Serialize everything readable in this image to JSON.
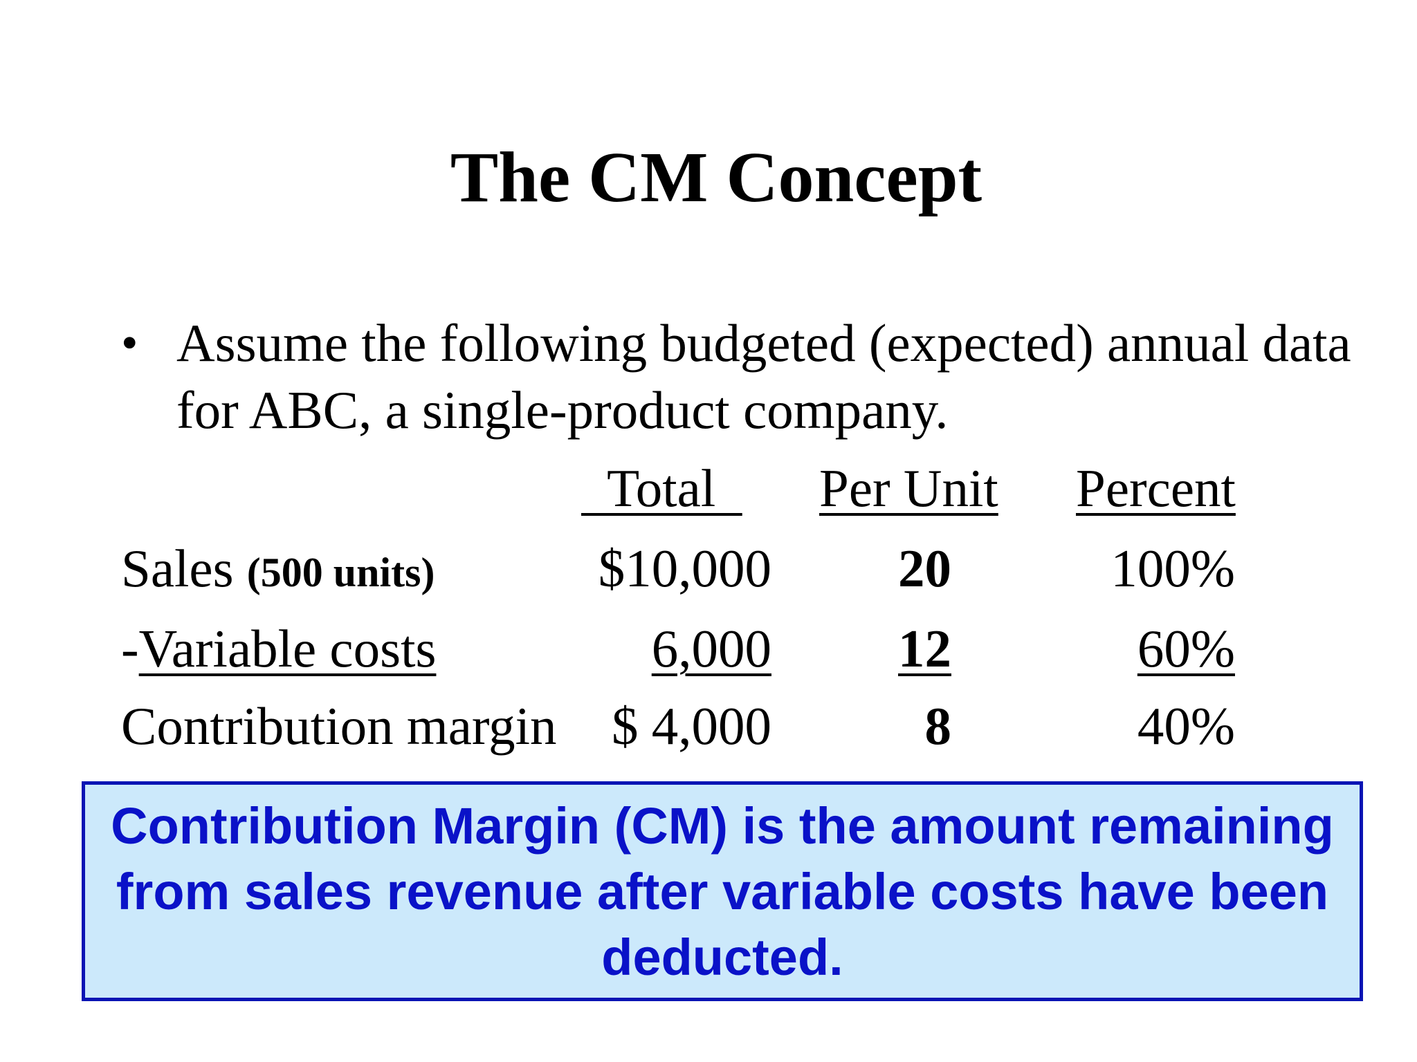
{
  "slide": {
    "title": "The CM Concept",
    "bullet": "Assume the following budgeted (expected) annual data for ABC, a single-product company."
  },
  "table": {
    "headers": {
      "total": "  Total  ",
      "per_unit": "Per Unit",
      "percent": "Percent"
    },
    "rows": [
      {
        "label": "Sales ",
        "label_note": "(500 units)",
        "total": "$10,000",
        "per_unit": "20",
        "percent": "100%"
      },
      {
        "label_prefix": "-",
        "label": "Variable costs",
        "total": "6,000",
        "per_unit": "12",
        "percent": "60%"
      },
      {
        "label": "Contribution margin",
        "total": "$ 4,000",
        "per_unit": "8",
        "percent": "40%"
      }
    ]
  },
  "callout": {
    "text": "Contribution Margin (CM) is the amount remaining from sales revenue after variable costs have been deducted.",
    "text_color": "#0a12c8",
    "background": "#cce9fb",
    "border_color": "#0a14b4"
  }
}
